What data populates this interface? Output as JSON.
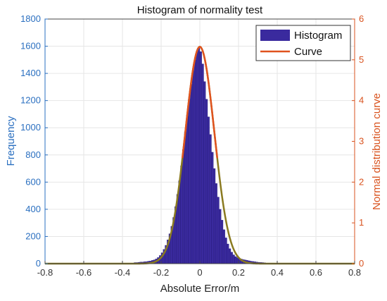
{
  "chart_data": {
    "type": "bar",
    "title": "Histogram of normality test",
    "xlabel": "Absolute Error/m",
    "ylabel_left": "Frequency",
    "ylabel_right": "Normal distribution curve",
    "xlim": [
      -0.8,
      0.8
    ],
    "ylim_left": [
      0,
      1800
    ],
    "ylim_right": [
      0,
      6
    ],
    "x_ticks": [
      "-0.8",
      "-0.6",
      "-0.4",
      "-0.2",
      "0",
      "0.2",
      "0.4",
      "0.6",
      "0.8"
    ],
    "y_left_ticks": [
      "0",
      "200",
      "400",
      "600",
      "800",
      "1000",
      "1200",
      "1400",
      "1600",
      "1800"
    ],
    "y_right_ticks": [
      "0",
      "1",
      "2",
      "3",
      "4",
      "5",
      "6"
    ],
    "grid": true,
    "legend_position": "top-right",
    "series": [
      {
        "name": "Histogram",
        "kind": "bar",
        "color": "#3a2a9e",
        "bin_width": 0.01,
        "bin_centers": [
          -0.335,
          -0.325,
          -0.315,
          -0.305,
          -0.295,
          -0.285,
          -0.275,
          -0.265,
          -0.255,
          -0.245,
          -0.235,
          -0.225,
          -0.215,
          -0.205,
          -0.195,
          -0.185,
          -0.175,
          -0.165,
          -0.155,
          -0.145,
          -0.135,
          -0.125,
          -0.115,
          -0.105,
          -0.095,
          -0.085,
          -0.075,
          -0.065,
          -0.055,
          -0.045,
          -0.035,
          -0.025,
          -0.015,
          -0.005,
          0.005,
          0.015,
          0.025,
          0.035,
          0.045,
          0.055,
          0.065,
          0.075,
          0.085,
          0.095,
          0.105,
          0.115,
          0.125,
          0.135,
          0.145,
          0.155,
          0.165,
          0.175,
          0.185,
          0.195,
          0.205,
          0.215,
          0.225,
          0.235,
          0.245,
          0.255,
          0.265,
          0.275,
          0.285,
          0.295,
          0.305,
          0.315,
          0.325,
          0.335
        ],
        "values": [
          8,
          8,
          10,
          12,
          12,
          14,
          15,
          18,
          20,
          24,
          28,
          35,
          45,
          60,
          80,
          105,
          135,
          175,
          220,
          275,
          340,
          420,
          510,
          610,
          720,
          840,
          970,
          1090,
          1210,
          1320,
          1420,
          1500,
          1560,
          1590,
          1560,
          1470,
          1340,
          1210,
          1080,
          950,
          820,
          700,
          590,
          490,
          400,
          320,
          250,
          190,
          145,
          110,
          85,
          65,
          52,
          44,
          38,
          34,
          30,
          27,
          24,
          21,
          18,
          16,
          14,
          12,
          10,
          9,
          8,
          7
        ]
      },
      {
        "name": "Curve",
        "kind": "line",
        "color": "#e0531f",
        "secondary_color": "#8a7a20",
        "mean": 0,
        "sigma": 0.075,
        "peak": 5.32
      }
    ]
  }
}
